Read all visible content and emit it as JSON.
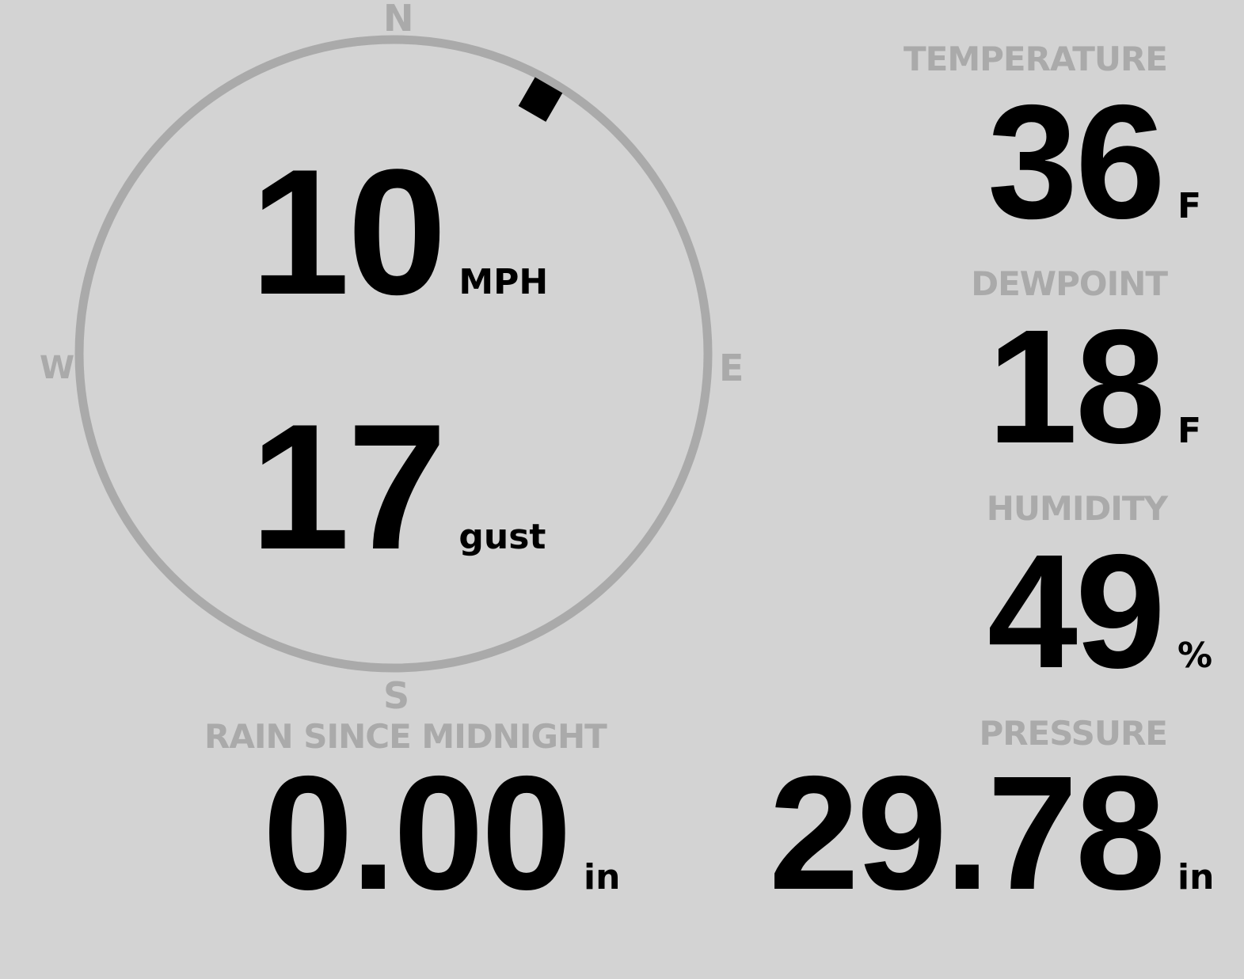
{
  "colors": {
    "background": "#d3d3d3",
    "muted": "#aaaaaa",
    "value": "#000000"
  },
  "compass": {
    "north": "N",
    "south": "S",
    "east": "E",
    "west": "W",
    "wind_direction_deg": 30
  },
  "wind": {
    "speed": "10",
    "speed_unit": "MPH",
    "gust": "17",
    "gust_unit": "gust"
  },
  "rain": {
    "label": "RAIN SINCE MIDNIGHT",
    "value": "0.00",
    "unit": "in"
  },
  "temperature": {
    "label": "TEMPERATURE",
    "value": "36",
    "unit": "F"
  },
  "dewpoint": {
    "label": "DEWPOINT",
    "value": "18",
    "unit": "F"
  },
  "humidity": {
    "label": "HUMIDITY",
    "value": "49",
    "unit": "%"
  },
  "pressure": {
    "label": "PRESSURE",
    "value": "29.78",
    "unit": "in"
  }
}
